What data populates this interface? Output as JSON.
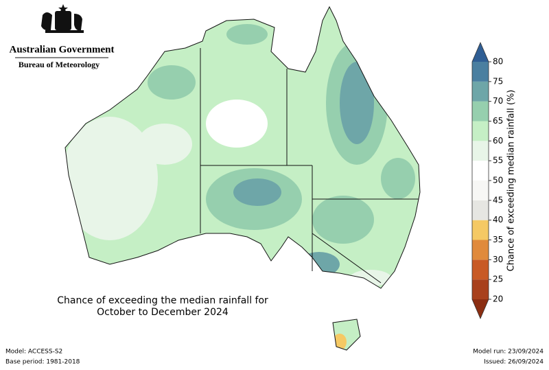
{
  "header": {
    "agency": "Australian Government",
    "bureau": "Bureau of Meteorology"
  },
  "map": {
    "title": [
      "Chance of exceeding the median rainfall for",
      "October to December 2024"
    ]
  },
  "colorbar": {
    "label": "Chance of exceeding median rainfall (%)",
    "ticks": [
      20,
      25,
      30,
      35,
      40,
      45,
      50,
      55,
      60,
      65,
      70,
      75,
      80
    ],
    "colors": [
      "#a8401c",
      "#c85a25",
      "#e08a3c",
      "#f5c964",
      "#e6e6e2",
      "#f7f7f5",
      "#ffffff",
      "#e8f5e8",
      "#c5efc5",
      "#96cfae",
      "#6ea6a8",
      "#4a7fa0"
    ],
    "under_color": "#8b2e12",
    "over_color": "#2f5e94"
  },
  "footer": {
    "model": "Model: ACCESS-S2",
    "base_period": "Base period: 1981-2018",
    "model_run": "Model run: 23/09/2024",
    "issued": "Issued: 26/09/2024"
  }
}
